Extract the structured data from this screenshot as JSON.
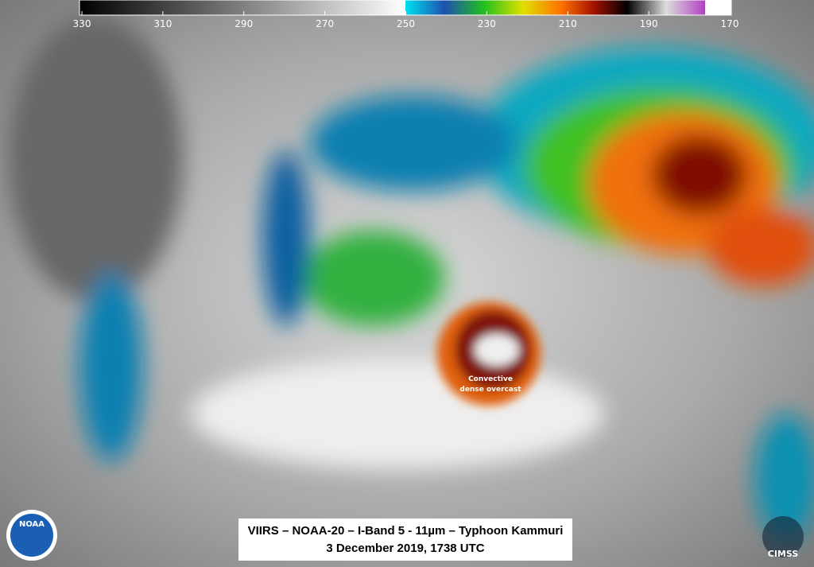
{
  "colorbar": {
    "range": [
      330,
      170
    ],
    "ticks": [
      330,
      310,
      290,
      270,
      250,
      230,
      210,
      190,
      170
    ]
  },
  "annotation": {
    "lines": [
      "Convective",
      "dense overcast"
    ]
  },
  "caption": {
    "lines": [
      "VIIRS – NOAA-20 – I-Band 5 - 11µm – Typhoon Kammuri",
      "3 December 2019, 1738 UTC"
    ]
  },
  "logos": {
    "left": "NOAA",
    "right": "CIMSS"
  }
}
